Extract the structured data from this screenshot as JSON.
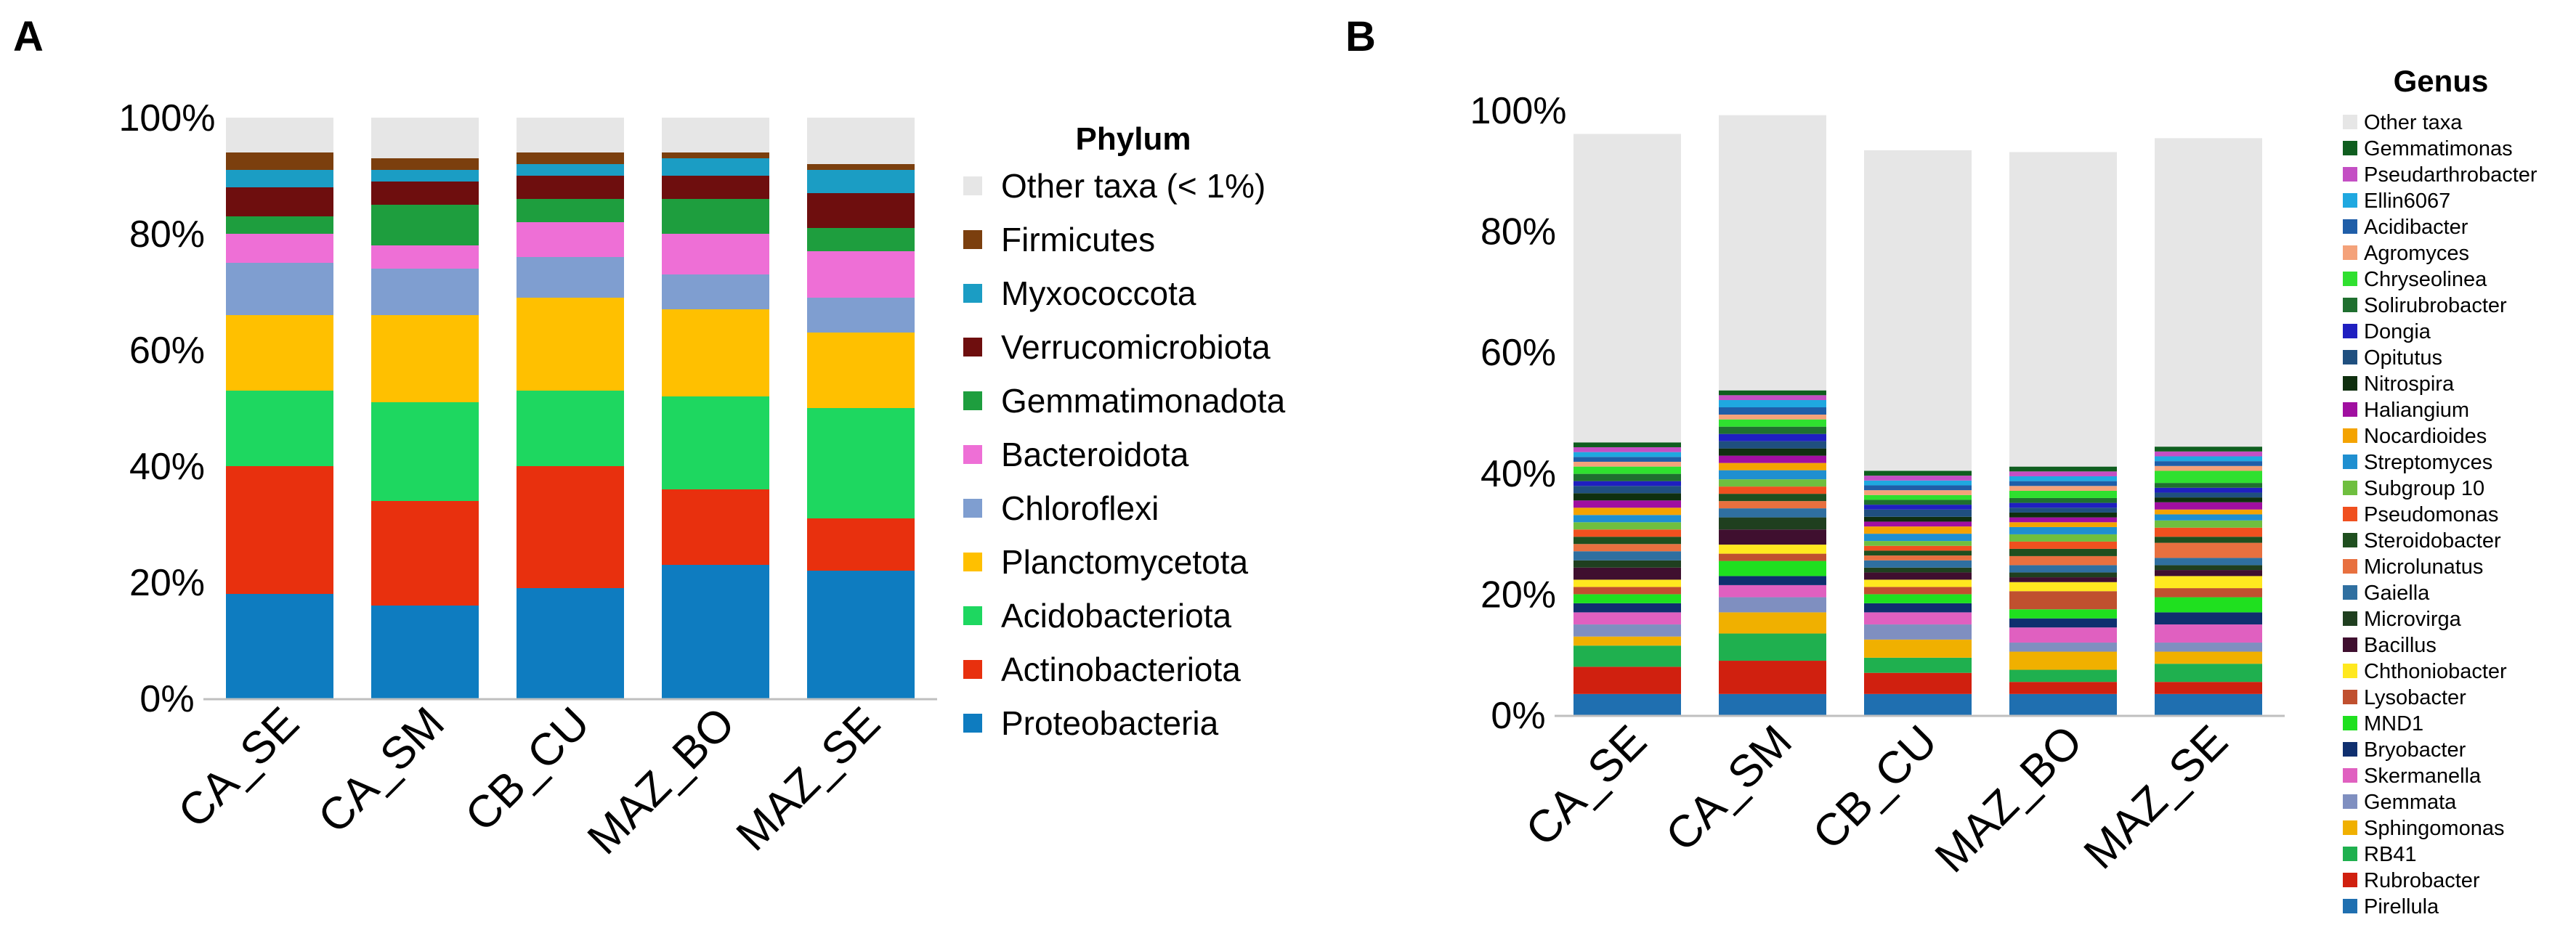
{
  "panel_a": {
    "letter": "A",
    "legend_title": "Phylum",
    "legend": [
      {
        "name": "Other taxa (< 1%)",
        "color": "#E6E6E6"
      },
      {
        "name": "Firmicutes",
        "color": "#7B3F0E"
      },
      {
        "name": "Myxococcota",
        "color": "#1B9DC4"
      },
      {
        "name": "Verrucomicrobiota",
        "color": "#6E0E0E"
      },
      {
        "name": "Gemmatimonadota",
        "color": "#1E9E3E"
      },
      {
        "name": "Bacteroidota",
        "color": "#EE6FD6"
      },
      {
        "name": "Chloroflexi",
        "color": "#7F9ED0"
      },
      {
        "name": "Planctomycetota",
        "color": "#FFC000"
      },
      {
        "name": "Acidobacteriota",
        "color": "#1ED760"
      },
      {
        "name": "Actinobacteriota",
        "color": "#E8300E"
      },
      {
        "name": "Proteobacteria",
        "color": "#0E7CC0"
      }
    ]
  },
  "panel_b": {
    "letter": "B",
    "legend_title": "Genus",
    "legend": [
      {
        "name": "Other taxa",
        "color": "#E6E6E6"
      },
      {
        "name": "Gemmatimonas",
        "color": "#0F5E1F"
      },
      {
        "name": "Pseudarthrobacter",
        "color": "#C44FC4"
      },
      {
        "name": "Ellin6067",
        "color": "#1FA8E0"
      },
      {
        "name": "Acidibacter",
        "color": "#1F5EA8"
      },
      {
        "name": "Agromyces",
        "color": "#F4A27A"
      },
      {
        "name": "Chryseolinea",
        "color": "#2FE02F"
      },
      {
        "name": "Solirubrobacter",
        "color": "#1F6F2F"
      },
      {
        "name": "Dongia",
        "color": "#1F1FC0"
      },
      {
        "name": "Opitutus",
        "color": "#1F4F7F"
      },
      {
        "name": "Nitrospira",
        "color": "#0F2F0F"
      },
      {
        "name": "Haliangium",
        "color": "#A00FA0"
      },
      {
        "name": "Nocardioides",
        "color": "#F4A300"
      },
      {
        "name": "Streptomyces",
        "color": "#1F8FD0"
      },
      {
        "name": "Subgroup 10",
        "color": "#6FBF3F"
      },
      {
        "name": "Pseudomonas",
        "color": "#F0501F"
      },
      {
        "name": "Steroidobacter",
        "color": "#1F4F1F"
      },
      {
        "name": "Microlunatus",
        "color": "#E8703F"
      },
      {
        "name": "Gaiella",
        "color": "#2F6FA0"
      },
      {
        "name": "Microvirga",
        "color": "#1F3F1F"
      },
      {
        "name": "Bacillus",
        "color": "#3F0F2F"
      },
      {
        "name": "Chthoniobacter",
        "color": "#FFE81F"
      },
      {
        "name": "Lysobacter",
        "color": "#C0502F"
      },
      {
        "name": "MND1",
        "color": "#1FE01F"
      },
      {
        "name": "Bryobacter",
        "color": "#0F2F6F"
      },
      {
        "name": "Skermanella",
        "color": "#E060C0"
      },
      {
        "name": "Gemmata",
        "color": "#7F8FC0"
      },
      {
        "name": "Sphingomonas",
        "color": "#F0B000"
      },
      {
        "name": "RB41",
        "color": "#1FB04F"
      },
      {
        "name": "Rubrobacter",
        "color": "#D0200F"
      },
      {
        "name": "Pirellula",
        "color": "#1F6FB0"
      }
    ]
  },
  "chart_data": [
    {
      "type": "bar",
      "stacked": true,
      "title": "",
      "legend_title": "Phylum",
      "xlabel": "",
      "ylabel": "",
      "ylim": [
        0,
        100
      ],
      "yticks": [
        "0%",
        "20%",
        "40%",
        "60%",
        "80%",
        "100%"
      ],
      "categories": [
        "CA_SE",
        "CA_SM",
        "CB_CU",
        "MAZ_BO",
        "MAZ_SE"
      ],
      "series": [
        {
          "name": "Proteobacteria",
          "values": [
            18,
            16,
            19,
            23,
            22
          ]
        },
        {
          "name": "Actinobacteriota",
          "values": [
            22,
            18,
            21,
            13,
            9
          ]
        },
        {
          "name": "Acidobacteriota",
          "values": [
            13,
            17,
            13,
            16,
            19
          ]
        },
        {
          "name": "Planctomycetota",
          "values": [
            13,
            15,
            16,
            15,
            13
          ]
        },
        {
          "name": "Chloroflexi",
          "values": [
            9,
            8,
            7,
            6,
            6
          ]
        },
        {
          "name": "Bacteroidota",
          "values": [
            5,
            4,
            6,
            7,
            8
          ]
        },
        {
          "name": "Gemmatimonadota",
          "values": [
            3,
            7,
            4,
            6,
            4
          ]
        },
        {
          "name": "Verrucomicrobiota",
          "values": [
            5,
            4,
            4,
            4,
            6
          ]
        },
        {
          "name": "Myxococcota",
          "values": [
            3,
            2,
            2,
            3,
            4
          ]
        },
        {
          "name": "Firmicutes",
          "values": [
            3,
            2,
            2,
            1,
            1
          ]
        },
        {
          "name": "Other taxa (< 1%)",
          "values": [
            6,
            7,
            6,
            6,
            8
          ]
        }
      ]
    },
    {
      "type": "bar",
      "stacked": true,
      "title": "",
      "legend_title": "Genus",
      "xlabel": "",
      "ylabel": "",
      "ylim": [
        0,
        100
      ],
      "yticks": [
        "0%",
        "20%",
        "40%",
        "60%",
        "80%",
        "100%"
      ],
      "categories": [
        "CA_SE",
        "CA_SM",
        "CB_CU",
        "MAZ_BO",
        "MAZ_SE"
      ],
      "series": [
        {
          "name": "Pirellula",
          "values": [
            3.5,
            3.5,
            3.5,
            3.5,
            3.5
          ]
        },
        {
          "name": "Rubrobacter",
          "values": [
            4.5,
            5.5,
            3.5,
            2,
            2
          ]
        },
        {
          "name": "RB41",
          "values": [
            3.5,
            4.5,
            2.5,
            2,
            3
          ]
        },
        {
          "name": "Sphingomonas",
          "values": [
            1.5,
            3.5,
            3,
            3,
            2
          ]
        },
        {
          "name": "Gemmata",
          "values": [
            2,
            2.5,
            2.5,
            1.5,
            1.5
          ]
        },
        {
          "name": "Skermanella",
          "values": [
            2,
            2,
            2,
            2.5,
            3
          ]
        },
        {
          "name": "Bryobacter",
          "values": [
            1.5,
            1.5,
            1.5,
            1.5,
            2
          ]
        },
        {
          "name": "MND1",
          "values": [
            1.5,
            2.5,
            1.5,
            1.5,
            2.5
          ]
        },
        {
          "name": "Lysobacter",
          "values": [
            1.2,
            1.2,
            1.2,
            3,
            1.5
          ]
        },
        {
          "name": "Chthoniobacter",
          "values": [
            1.2,
            1.5,
            1.2,
            1.5,
            2
          ]
        },
        {
          "name": "Bacillus",
          "values": [
            2,
            2.5,
            1.2,
            0.8,
            1
          ]
        },
        {
          "name": "Microvirga",
          "values": [
            1.2,
            2,
            0.8,
            0.8,
            0.8
          ]
        },
        {
          "name": "Gaiella",
          "values": [
            1.5,
            1.5,
            1.2,
            1.2,
            1.2
          ]
        },
        {
          "name": "Microlunatus",
          "values": [
            1.2,
            1.2,
            0.8,
            1.5,
            2.5
          ]
        },
        {
          "name": "Steroidobacter",
          "values": [
            1.2,
            1.2,
            0.8,
            1.2,
            1
          ]
        },
        {
          "name": "Pseudomonas",
          "values": [
            1.2,
            1.2,
            0.8,
            1.2,
            1.5
          ]
        },
        {
          "name": "Subgroup 10",
          "values": [
            1.2,
            1.2,
            0.8,
            1.2,
            1.2
          ]
        },
        {
          "name": "Streptomyces",
          "values": [
            1.2,
            1.5,
            1.2,
            1.2,
            1
          ]
        },
        {
          "name": "Nocardioides",
          "values": [
            1.2,
            1.2,
            1.2,
            0.8,
            0.8
          ]
        },
        {
          "name": "Haliangium",
          "values": [
            1.2,
            1.2,
            0.8,
            0.8,
            1.2
          ]
        },
        {
          "name": "Nitrospira",
          "values": [
            1.2,
            1.2,
            0.8,
            0.8,
            0.8
          ]
        },
        {
          "name": "Opitutus",
          "values": [
            1.2,
            1.2,
            1.2,
            0.8,
            0.8
          ]
        },
        {
          "name": "Dongia",
          "values": [
            0.8,
            1.2,
            0.8,
            0.8,
            0.8
          ]
        },
        {
          "name": "Solirubrobacter",
          "values": [
            1.2,
            1.2,
            0.8,
            0.8,
            0.8
          ]
        },
        {
          "name": "Chryseolinea",
          "values": [
            1.2,
            1.2,
            0.8,
            1.2,
            2
          ]
        },
        {
          "name": "Agromyces",
          "values": [
            0.8,
            0.8,
            0.8,
            0.8,
            0.8
          ]
        },
        {
          "name": "Acidibacter",
          "values": [
            0.8,
            1.2,
            0.8,
            0.8,
            0.8
          ]
        },
        {
          "name": "Ellin6067",
          "values": [
            0.8,
            1.2,
            0.8,
            0.8,
            0.8
          ]
        },
        {
          "name": "Pseudarthrobacter",
          "values": [
            0.8,
            0.8,
            0.8,
            0.8,
            0.8
          ]
        },
        {
          "name": "Gemmatimonas",
          "values": [
            0.8,
            0.8,
            0.8,
            0.8,
            0.8
          ]
        },
        {
          "name": "Other taxa",
          "values": [
            51,
            45.5,
            53,
            52,
            51
          ]
        }
      ]
    }
  ]
}
